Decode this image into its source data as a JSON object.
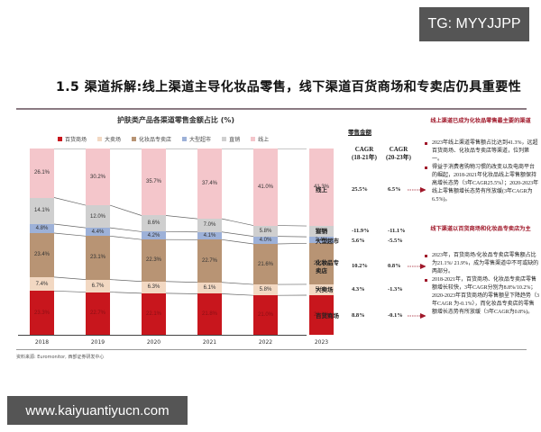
{
  "watermarks": {
    "top": "TG: MYYJJPP",
    "bottom": "www.kaiyuantiyucn.com"
  },
  "section_title": "1.5 渠道拆解:线上渠道主导化妆品零售，线下渠道百货商场和专卖店仍具重要性",
  "source": "资料来源: Euromonitor, 西部证券研发中心",
  "chart_data": {
    "type": "bar",
    "stacked": true,
    "title": "护肤类产品各渠道零售金额占比 (%)",
    "xlabel": "",
    "ylabel": "",
    "ylim": [
      0,
      100
    ],
    "grid": false,
    "legend_position": "top",
    "categories": [
      "2018",
      "2019",
      "2020",
      "2021",
      "2022",
      "2023"
    ],
    "series": [
      {
        "name": "百货商场",
        "color": "#c8161d",
        "label_color": "#8b0f14",
        "values": [
          23.3,
          22.7,
          22.1,
          21.8,
          21.0,
          21.1
        ]
      },
      {
        "name": "大卖场",
        "color": "#f2d8c2",
        "label_color": "#333333",
        "values": [
          7.4,
          6.7,
          6.3,
          6.1,
          5.8,
          5.8
        ]
      },
      {
        "name": "化妆品专卖店",
        "color": "#b89474",
        "label_color": "#333333",
        "values": [
          23.4,
          23.1,
          22.3,
          22.7,
          21.6,
          21.9
        ]
      },
      {
        "name": "大型超市",
        "color": "#9db1d8",
        "label_color": "#333333",
        "values": [
          4.8,
          4.4,
          4.2,
          4.1,
          4.0,
          3.4
        ]
      },
      {
        "name": "直销",
        "color": "#cfcfcf",
        "label_color": "#333333",
        "values": [
          14.1,
          12.0,
          8.6,
          7.0,
          5.8,
          5.8
        ]
      },
      {
        "name": "线上",
        "color": "#f4c6cb",
        "label_color": "#333333",
        "values": [
          26.1,
          30.2,
          35.7,
          37.4,
          41.0,
          41.3
        ]
      }
    ]
  },
  "table": {
    "header": "零售金额",
    "col1": "CAGR\n(18-21年)",
    "col2": "CAGR\n(20-23年)",
    "rows": [
      {
        "name": "线上",
        "cagr_18_21": "25.5%",
        "cagr_20_23": "6.5%",
        "arrow": true
      },
      {
        "name": "直销",
        "cagr_18_21": "-11.9%",
        "cagr_20_23": "-11.1%",
        "arrow": false
      },
      {
        "name": "大型超市",
        "cagr_18_21": "5.6%",
        "cagr_20_23": "-5.5%",
        "arrow": false
      },
      {
        "name": "化妆品专卖店",
        "cagr_18_21": "10.2%",
        "cagr_20_23": "0.8%",
        "arrow": true
      },
      {
        "name": "大卖场",
        "cagr_18_21": "4.3%",
        "cagr_20_23": "-1.3%",
        "arrow": false
      },
      {
        "name": "百货商场",
        "cagr_18_21": "8.8%",
        "cagr_20_23": "-0.1%",
        "arrow": true
      }
    ]
  },
  "panel": {
    "online": {
      "heading": "线上渠道已成为化妆品零售最主要的渠道",
      "bullets": [
        "2023年线上渠道零售额占比达到41.3%，远超百货商场、化妆品专卖店等渠道，位列第一。",
        "得益于消费者购物习惯的改变以及电商平台的崛起，2018-2021年化妆品线上零售额保持高增长态势（3年CAGR25.5%）；2020-2023年线上零售额增长态势有所放缓(3年CAGR为6.5%)。"
      ]
    },
    "offline": {
      "heading": "线下渠道以百货商场和化妆品专卖店为主",
      "bullets": [
        "2023年，百货商场/化妆品专卖店零售额占比为21.1%/ 21.9%，成为零售渠道中不可或缺的两部分。",
        "2018-2021年，百货商场、化妆品专卖店零售额增长较快，3年CAGR分别为8.8%/10.2%；2020-2023年百货商场的零售额呈下降趋势（3年CAGR 为-0.1%），而化妆品专卖店的零售额增长态势有所放缓（3年CAGR为0.8%)。"
      ]
    }
  }
}
